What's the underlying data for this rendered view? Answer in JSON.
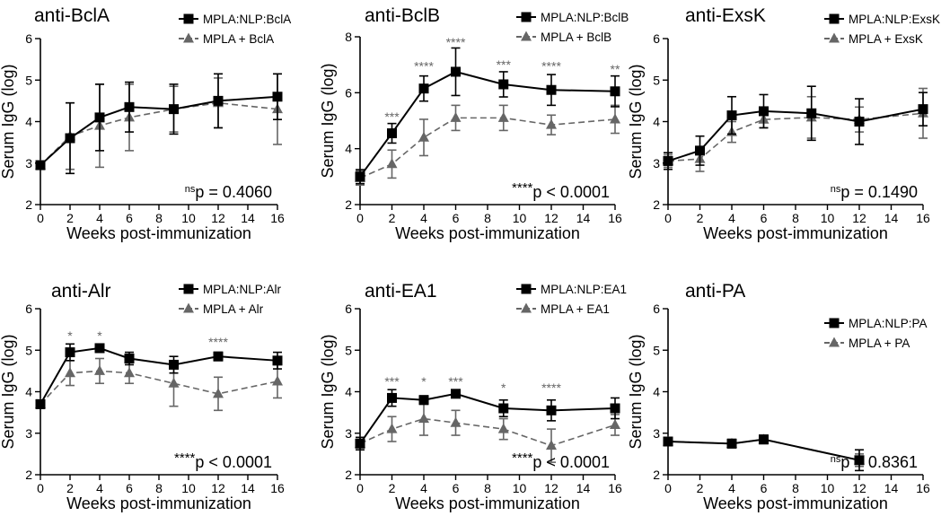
{
  "figure": {
    "colors": {
      "series_a": "#000000",
      "series_b": "#666666",
      "stars": "#666666",
      "axis": "#000000"
    }
  },
  "chart_data": [
    {
      "type": "line",
      "title": "anti-BclA",
      "xlabel": "Weeks post-immunization",
      "ylabel": "Serum IgG (log)",
      "xlim": [
        0,
        16
      ],
      "ylim": [
        2,
        6
      ],
      "xticks": [
        0,
        2,
        4,
        6,
        8,
        10,
        12,
        14,
        16
      ],
      "yticks": [
        2,
        3,
        4,
        5,
        6
      ],
      "legend_position": "top-right",
      "series": [
        {
          "name": "MPLA:NLP:BclA",
          "marker": "square",
          "line": "solid",
          "x": [
            0,
            2,
            4,
            6,
            9,
            12,
            16
          ],
          "y": [
            2.95,
            3.6,
            4.1,
            4.35,
            4.3,
            4.5,
            4.6
          ],
          "err": [
            0.1,
            0.85,
            0.8,
            0.6,
            0.6,
            0.65,
            0.55
          ]
        },
        {
          "name": "MPLA + BclA",
          "marker": "triangle",
          "line": "dashed",
          "x": [
            0,
            2,
            4,
            6,
            9,
            12,
            16
          ],
          "y": [
            2.95,
            3.65,
            3.9,
            4.1,
            4.3,
            4.45,
            4.3
          ],
          "err": [
            0.1,
            0.8,
            1.0,
            0.8,
            0.55,
            0.6,
            0.85
          ]
        }
      ],
      "stars": [],
      "pvalue": {
        "sup": "ns",
        "text": "p = 0.4060"
      }
    },
    {
      "type": "line",
      "title": "anti-BclB",
      "xlabel": "Weeks post-immunization",
      "ylabel": "Serum IgG (log)",
      "xlim": [
        0,
        16
      ],
      "ylim": [
        2,
        8
      ],
      "xticks": [
        0,
        2,
        4,
        6,
        8,
        10,
        12,
        14,
        16
      ],
      "yticks": [
        2,
        4,
        6,
        8
      ],
      "legend_position": "top-right",
      "series": [
        {
          "name": "MPLA:NLP:BclB",
          "marker": "square",
          "line": "solid",
          "x": [
            0,
            2,
            4,
            6,
            9,
            12,
            16
          ],
          "y": [
            3.0,
            4.55,
            6.15,
            6.75,
            6.3,
            6.1,
            6.05
          ],
          "err": [
            0.25,
            0.35,
            0.45,
            0.85,
            0.45,
            0.55,
            0.55
          ]
        },
        {
          "name": "MPLA + BclB",
          "marker": "triangle",
          "line": "dashed",
          "x": [
            0,
            2,
            4,
            6,
            9,
            12,
            16
          ],
          "y": [
            2.95,
            3.45,
            4.4,
            5.1,
            5.1,
            4.85,
            5.05
          ],
          "err": [
            0.25,
            0.5,
            0.65,
            0.45,
            0.45,
            0.35,
            0.5
          ]
        }
      ],
      "stars": [
        {
          "x": 2,
          "label": "***",
          "at": 5.15
        },
        {
          "x": 4,
          "label": "****",
          "at": 6.95
        },
        {
          "x": 6,
          "label": "****",
          "at": 7.8
        },
        {
          "x": 9,
          "label": "***",
          "at": 7.0
        },
        {
          "x": 12,
          "label": "****",
          "at": 6.95
        },
        {
          "x": 16,
          "label": "**",
          "at": 6.85
        }
      ],
      "pvalue": {
        "sup": "****",
        "text": "p < 0.0001"
      }
    },
    {
      "type": "line",
      "title": "anti-ExsK",
      "xlabel": "Weeks post-immunization",
      "ylabel": "Serum IgG (log)",
      "xlim": [
        0,
        16
      ],
      "ylim": [
        2,
        6
      ],
      "xticks": [
        0,
        2,
        4,
        6,
        8,
        10,
        12,
        14,
        16
      ],
      "yticks": [
        2,
        3,
        4,
        5,
        6
      ],
      "legend_position": "top-right",
      "series": [
        {
          "name": "MPLA:NLP:ExsK",
          "marker": "square",
          "line": "solid",
          "x": [
            0,
            2,
            4,
            6,
            9,
            12,
            16
          ],
          "y": [
            3.05,
            3.3,
            4.15,
            4.25,
            4.2,
            4.0,
            4.3
          ],
          "err": [
            0.2,
            0.35,
            0.45,
            0.4,
            0.65,
            0.55,
            0.4
          ]
        },
        {
          "name": "MPLA + ExsK",
          "marker": "triangle",
          "line": "dashed",
          "x": [
            0,
            2,
            4,
            6,
            9,
            12,
            16
          ],
          "y": [
            3.05,
            3.1,
            3.75,
            4.05,
            4.1,
            4.05,
            4.2
          ],
          "err": [
            0.15,
            0.3,
            0.25,
            0.2,
            0.5,
            0.3,
            0.6
          ]
        }
      ],
      "stars": [],
      "pvalue": {
        "sup": "ns",
        "text": "p = 0.1490"
      }
    },
    {
      "type": "line",
      "title": "anti-Alr",
      "xlabel": "Weeks post-immunization",
      "ylabel": "Serum IgG (log)",
      "xlim": [
        0,
        16
      ],
      "ylim": [
        2,
        6
      ],
      "xticks": [
        0,
        2,
        4,
        6,
        8,
        10,
        12,
        14,
        16
      ],
      "yticks": [
        2,
        3,
        4,
        5,
        6
      ],
      "legend_position": "top-right",
      "series": [
        {
          "name": "MPLA:NLP:Alr",
          "marker": "square",
          "line": "solid",
          "x": [
            0,
            2,
            4,
            6,
            9,
            12,
            16
          ],
          "y": [
            3.7,
            4.95,
            5.05,
            4.8,
            4.65,
            4.85,
            4.75
          ],
          "err": [
            0.1,
            0.2,
            0.1,
            0.15,
            0.2,
            0.1,
            0.2
          ]
        },
        {
          "name": "MPLA + Alr",
          "marker": "triangle",
          "line": "dashed",
          "x": [
            0,
            2,
            4,
            6,
            9,
            12,
            16
          ],
          "y": [
            3.7,
            4.45,
            4.5,
            4.45,
            4.2,
            3.95,
            4.25
          ],
          "err": [
            0.1,
            0.3,
            0.3,
            0.25,
            0.55,
            0.4,
            0.4
          ]
        }
      ],
      "stars": [
        {
          "x": 2,
          "label": "*",
          "at": 5.35
        },
        {
          "x": 4,
          "label": "*",
          "at": 5.35
        },
        {
          "x": 12,
          "label": "****",
          "at": 5.2
        }
      ],
      "pvalue": {
        "sup": "****",
        "text": "p < 0.0001"
      }
    },
    {
      "type": "line",
      "title": "anti-EA1",
      "xlabel": "Weeks post-immunization",
      "ylabel": "Serum IgG (log)",
      "xlim": [
        0,
        16
      ],
      "ylim": [
        2,
        6
      ],
      "xticks": [
        0,
        2,
        4,
        6,
        8,
        10,
        12,
        14,
        16
      ],
      "yticks": [
        2,
        3,
        4,
        5,
        6
      ],
      "legend_position": "top-right",
      "series": [
        {
          "name": "MPLA:NLP:EA1",
          "marker": "square",
          "line": "solid",
          "x": [
            0,
            2,
            4,
            6,
            9,
            12,
            16
          ],
          "y": [
            2.75,
            3.85,
            3.8,
            3.95,
            3.6,
            3.55,
            3.6
          ],
          "err": [
            0.15,
            0.2,
            0.1,
            0.05,
            0.2,
            0.25,
            0.25
          ]
        },
        {
          "name": "MPLA + EA1",
          "marker": "triangle",
          "line": "dashed",
          "x": [
            0,
            2,
            4,
            6,
            9,
            12,
            16
          ],
          "y": [
            2.75,
            3.1,
            3.35,
            3.25,
            3.1,
            2.7,
            3.2
          ],
          "err": [
            0.15,
            0.3,
            0.4,
            0.3,
            0.25,
            0.4,
            0.25
          ]
        }
      ],
      "stars": [
        {
          "x": 2,
          "label": "***",
          "at": 4.25
        },
        {
          "x": 4,
          "label": "*",
          "at": 4.25
        },
        {
          "x": 6,
          "label": "***",
          "at": 4.25
        },
        {
          "x": 9,
          "label": "*",
          "at": 4.1
        },
        {
          "x": 12,
          "label": "****",
          "at": 4.1
        }
      ],
      "pvalue": {
        "sup": "****",
        "text": "p < 0.0001"
      }
    },
    {
      "type": "line",
      "title": "anti-PA",
      "xlabel": "Weeks post-immunization",
      "ylabel": "Serum IgG (log)",
      "xlim": [
        0,
        16
      ],
      "ylim": [
        2,
        6
      ],
      "xticks": [
        0,
        2,
        4,
        6,
        8,
        10,
        12,
        14,
        16
      ],
      "yticks": [
        2,
        3,
        4,
        5,
        6
      ],
      "legend_position": "right",
      "series": [
        {
          "name": "MPLA:NLP:PA",
          "marker": "square",
          "line": "solid",
          "x": [
            0,
            4,
            6,
            12
          ],
          "y": [
            2.8,
            2.75,
            2.85,
            2.35
          ],
          "err": [
            0.05,
            0.1,
            0.1,
            0.25
          ]
        },
        {
          "name": "MPLA + PA",
          "marker": "triangle",
          "line": "dashed",
          "x": [
            0,
            4,
            6,
            12
          ],
          "y": [
            2.8,
            2.75,
            2.85,
            2.35
          ],
          "err": [
            0.05,
            0.1,
            0.1,
            0.15
          ]
        }
      ],
      "stars": [],
      "pvalue": {
        "sup": "ns",
        "text": "p = 0.8361"
      }
    }
  ]
}
